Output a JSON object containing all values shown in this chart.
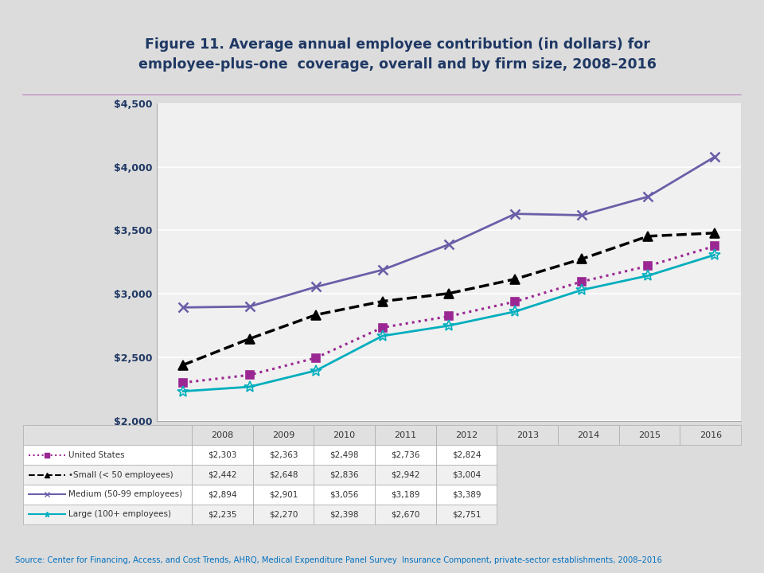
{
  "title_line1": "Figure 11. Average annual employee contribution (in dollars) for",
  "title_line2": "employee-plus-one  coverage, overall and by firm size, 2008–2016",
  "years": [
    2008,
    2009,
    2010,
    2011,
    2012,
    2013,
    2014,
    2015,
    2016
  ],
  "series": [
    {
      "label": "United States",
      "values": [
        2303,
        2363,
        2498,
        2736,
        2824,
        2940,
        3097,
        3220,
        3376
      ],
      "color": "#9B2793",
      "linestyle": ":",
      "marker": "s",
      "markersize": 7,
      "linewidth": 2.2
    },
    {
      "label": "•Small (< 50 employees)",
      "values": [
        2442,
        2648,
        2836,
        2942,
        3004,
        3117,
        3275,
        3454,
        3479
      ],
      "color": "#000000",
      "linestyle": "--",
      "marker": "^",
      "markersize": 8,
      "linewidth": 2.5
    },
    {
      "label": "Medium (50-99 employees)",
      "values": [
        2894,
        2901,
        3056,
        3189,
        3389,
        3630,
        3619,
        3765,
        4077
      ],
      "color": "#6B5EA8",
      "linestyle": "-",
      "marker": "x",
      "markersize": 9,
      "linewidth": 2.0
    },
    {
      "label": "Large (100+ employees)",
      "values": [
        2235,
        2270,
        2398,
        2670,
        2751,
        2862,
        3031,
        3144,
        3307
      ],
      "color": "#00AEBD",
      "linestyle": "-",
      "marker": "*",
      "markersize": 10,
      "linewidth": 2.0
    }
  ],
  "ylim": [
    2000,
    4500
  ],
  "yticks": [
    2000,
    2500,
    3000,
    3500,
    4000,
    4500
  ],
  "background_color": "#DCDCDC",
  "plot_bg_color": "#F0F0F0",
  "title_color": "#1F3864",
  "table_header_bg": "#E0E0E0",
  "table_row_colors": [
    "#FFFFFF",
    "#F0F0F0"
  ],
  "grid_color": "#FFFFFF",
  "source_color": "#0070C0",
  "sep_line_color": "#C8A0C8",
  "source_text": "Source: Center for Financing, Access, and Cost Trends, AHRQ, Medical Expenditure Panel Survey  Insurance Component, private-sector establishments, 2008–2016"
}
